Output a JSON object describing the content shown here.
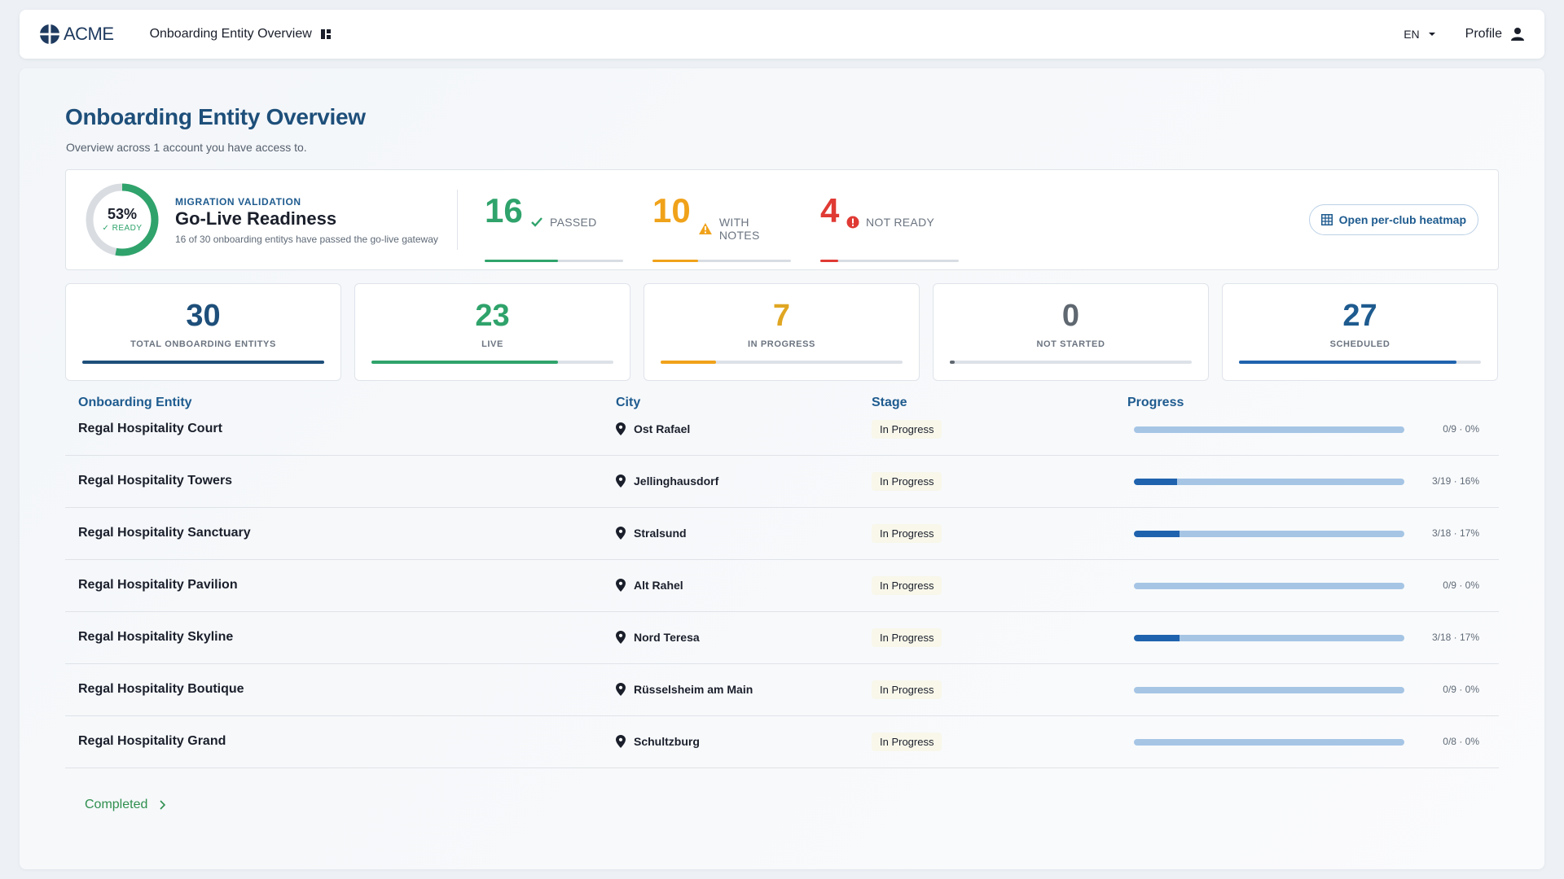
{
  "topbar": {
    "brand": "ACME",
    "app_title": "Onboarding Entity Overview",
    "lang": "EN",
    "profile_label": "Profile"
  },
  "page": {
    "title": "Onboarding Entity Overview",
    "subtitle": "Overview across 1 account you have access to."
  },
  "readiness": {
    "percent": "53%",
    "ready_label": "READY",
    "percent_value": 53,
    "kicker": "MIGRATION VALIDATION",
    "title": "Go-Live Readiness",
    "description": "16 of 30 onboarding entitys have passed the go-live gateway",
    "metrics": [
      {
        "value": "16",
        "label": "PASSED",
        "icon": "check-icon",
        "color": "#2fa36b",
        "fraction": 0.53
      },
      {
        "value": "10",
        "label": "WITH NOTES",
        "icon": "warning-icon",
        "color": "#f0a21a",
        "fraction": 0.33
      },
      {
        "value": "4",
        "label": "NOT READY",
        "icon": "error-icon",
        "color": "#e03a34",
        "fraction": 0.13
      }
    ],
    "heatmap_button": "Open per-club heatmap"
  },
  "stats": [
    {
      "value": "30",
      "label": "TOTAL ONBOARDING ENTITYS",
      "color": "#1e4f7a",
      "bar": "#1e4f7a",
      "fraction": 1.0
    },
    {
      "value": "23",
      "label": "LIVE",
      "color": "#2fa36b",
      "bar": "#2fa36b",
      "fraction": 0.77
    },
    {
      "value": "7",
      "label": "IN PROGRESS",
      "color": "#e0a622",
      "bar": "#f0a21a",
      "fraction": 0.23
    },
    {
      "value": "0",
      "label": "NOT STARTED",
      "color": "#5f6770",
      "bar": "#5f6770",
      "fraction": 0.02
    },
    {
      "value": "27",
      "label": "SCHEDULED",
      "color": "#1e5b8f",
      "bar": "#1f63ae",
      "fraction": 0.9
    }
  ],
  "table": {
    "headers": {
      "entity": "Onboarding Entity",
      "city": "City",
      "stage": "Stage",
      "progress": "Progress"
    },
    "rows": [
      {
        "name": "Regal Hospitality Court",
        "city": "Ost Rafael",
        "stage": "In Progress",
        "progress_text": "0/9 · 0%",
        "fraction": 0.0
      },
      {
        "name": "Regal Hospitality Towers",
        "city": "Jellinghausdorf",
        "stage": "In Progress",
        "progress_text": "3/19 · 16%",
        "fraction": 0.16
      },
      {
        "name": "Regal Hospitality Sanctuary",
        "city": "Stralsund",
        "stage": "In Progress",
        "progress_text": "3/18 · 17%",
        "fraction": 0.17
      },
      {
        "name": "Regal Hospitality Pavilion",
        "city": "Alt Rahel",
        "stage": "In Progress",
        "progress_text": "0/9 · 0%",
        "fraction": 0.0
      },
      {
        "name": "Regal Hospitality Skyline",
        "city": "Nord Teresa",
        "stage": "In Progress",
        "progress_text": "3/18 · 17%",
        "fraction": 0.17
      },
      {
        "name": "Regal Hospitality Boutique",
        "city": "Rüsselsheim am Main",
        "stage": "In Progress",
        "progress_text": "0/9 · 0%",
        "fraction": 0.0
      },
      {
        "name": "Regal Hospitality Grand",
        "city": "Schultzburg",
        "stage": "In Progress",
        "progress_text": "0/8 · 0%",
        "fraction": 0.0
      }
    ]
  },
  "completed_link": "Completed"
}
